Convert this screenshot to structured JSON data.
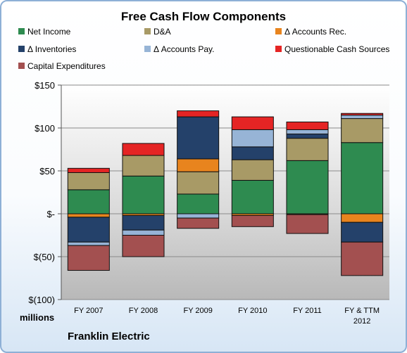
{
  "chart_data": {
    "type": "bar",
    "stacked": true,
    "title": "Free Cash Flow Components",
    "unit_label": "millions",
    "source_label": "Franklin Electric",
    "categories": [
      [
        "FY 2007"
      ],
      [
        "FY 2008"
      ],
      [
        "FY 2009"
      ],
      [
        "FY 2010"
      ],
      [
        "FY 2011"
      ],
      [
        "FY & TTM",
        "2012"
      ]
    ],
    "ylim": [
      -100,
      150
    ],
    "yticks": [
      150,
      100,
      50,
      0,
      -50,
      -100
    ],
    "ytick_labels": [
      "$150",
      "$100",
      "$50",
      "$-",
      "$(50)",
      "$(100)"
    ],
    "grid": true,
    "legend_position": "top",
    "series": [
      {
        "name": "Net Income",
        "color": "#2e8b50",
        "values": [
          28,
          44,
          23,
          39,
          62,
          83
        ]
      },
      {
        "name": "D&A",
        "color": "#a89a66",
        "values": [
          20,
          24,
          26,
          24,
          26,
          28
        ]
      },
      {
        "name": "Δ Accounts Rec.",
        "color": "#e8841e",
        "values": [
          -4,
          -2,
          15,
          -2,
          -1,
          -10
        ]
      },
      {
        "name": "Δ Inventories",
        "color": "#24416a",
        "values": [
          -29,
          -17,
          49,
          15,
          5,
          -23
        ]
      },
      {
        "name": "Δ Accounts Pay.",
        "color": "#97b4d6",
        "values": [
          -4,
          -6,
          -5,
          20,
          5,
          4
        ]
      },
      {
        "name": "Questionable Cash Sources",
        "color": "#e52424",
        "values": [
          5,
          14,
          7,
          15,
          9,
          2
        ]
      },
      {
        "name": "Capital Expenditures",
        "color": "#a35050",
        "values": [
          -29,
          -25,
          -12,
          -13,
          -22,
          -39
        ]
      }
    ]
  }
}
